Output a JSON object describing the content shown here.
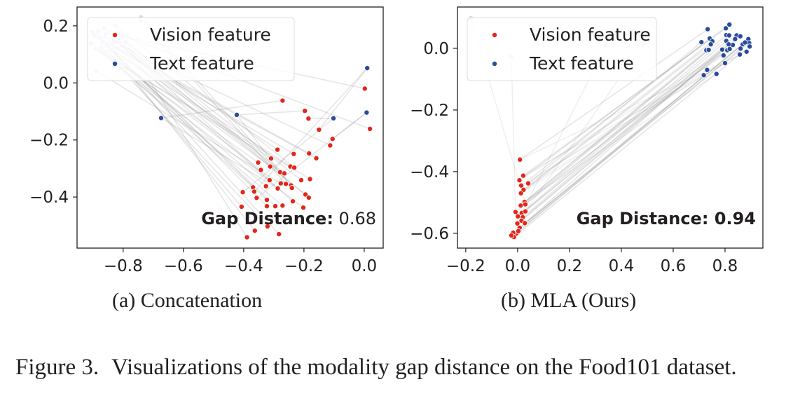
{
  "chart_data": [
    {
      "type": "scatter",
      "subcaption": "(a) Concatenation",
      "xlim": [
        -0.953,
        0.063
      ],
      "ylim": [
        -0.579,
        0.266
      ],
      "xticks": [
        -0.8,
        -0.6,
        -0.4,
        -0.2,
        0.0
      ],
      "xtick_labels": [
        "−0.8",
        "−0.6",
        "−0.4",
        "−0.2",
        "0.0"
      ],
      "yticks": [
        0.2,
        0.0,
        -0.2,
        -0.4
      ],
      "ytick_labels": [
        "0.2",
        "0.0",
        "−0.2",
        "−0.4"
      ],
      "grid": false,
      "legend": "top-left",
      "annotation": {
        "label": "Gap Distance:",
        "value": "0.68",
        "value_bold": false
      },
      "series": [
        {
          "name": "Vision feature",
          "color": "#e3261b",
          "points": [
            [
              -0.271,
              -0.062
            ],
            [
              -0.197,
              -0.098
            ],
            [
              -0.185,
              -0.125
            ],
            [
              -0.15,
              -0.164
            ],
            [
              -0.105,
              -0.196
            ],
            [
              -0.113,
              -0.219
            ],
            [
              0.002,
              -0.02
            ],
            [
              0.019,
              -0.161
            ],
            [
              -0.288,
              -0.234
            ],
            [
              -0.234,
              -0.249
            ],
            [
              -0.183,
              -0.247
            ],
            [
              -0.159,
              -0.264
            ],
            [
              -0.352,
              -0.279
            ],
            [
              -0.309,
              -0.265
            ],
            [
              -0.343,
              -0.305
            ],
            [
              -0.312,
              -0.293
            ],
            [
              -0.245,
              -0.293
            ],
            [
              -0.232,
              -0.297
            ],
            [
              -0.279,
              -0.313
            ],
            [
              -0.265,
              -0.317
            ],
            [
              -0.314,
              -0.341
            ],
            [
              -0.209,
              -0.341
            ],
            [
              -0.18,
              -0.337
            ],
            [
              -0.369,
              -0.366
            ],
            [
              -0.326,
              -0.362
            ],
            [
              -0.277,
              -0.352
            ],
            [
              -0.26,
              -0.354
            ],
            [
              -0.243,
              -0.359
            ],
            [
              -0.287,
              -0.37
            ],
            [
              -0.24,
              -0.368
            ],
            [
              -0.403,
              -0.383
            ],
            [
              -0.365,
              -0.381
            ],
            [
              -0.357,
              -0.403
            ],
            [
              -0.323,
              -0.41
            ],
            [
              -0.237,
              -0.415
            ],
            [
              -0.195,
              -0.391
            ],
            [
              -0.184,
              -0.402
            ],
            [
              -0.407,
              -0.434
            ],
            [
              -0.323,
              -0.432
            ],
            [
              -0.295,
              -0.432
            ],
            [
              -0.271,
              -0.43
            ],
            [
              -0.202,
              -0.437
            ],
            [
              -0.321,
              -0.503
            ],
            [
              -0.363,
              -0.518
            ],
            [
              -0.283,
              -0.53
            ],
            [
              -0.389,
              -0.541
            ]
          ]
        },
        {
          "name": "Text feature",
          "color": "#2a4b9b",
          "faded_color": "#d8d8ee",
          "points": [
            [
              -0.674,
              -0.123
            ],
            [
              -0.423,
              -0.112
            ],
            [
              -0.102,
              -0.124
            ],
            [
              0.01,
              0.052
            ],
            [
              0.008,
              -0.104
            ],
            [
              -0.902,
              0.179
            ],
            [
              -0.884,
              0.182
            ],
            [
              -0.864,
              0.191
            ],
            [
              -0.857,
              0.17
            ],
            [
              -0.894,
              0.166
            ],
            [
              -0.878,
              0.158
            ],
            [
              -0.868,
              0.145
            ],
            [
              -0.906,
              0.139
            ],
            [
              -0.891,
              0.119
            ],
            [
              -0.874,
              0.124
            ],
            [
              -0.853,
              0.132
            ],
            [
              -0.839,
              0.116
            ],
            [
              -0.825,
              0.201
            ],
            [
              -0.812,
              0.166
            ],
            [
              -0.83,
              0.149
            ],
            [
              -0.814,
              0.141
            ],
            [
              -0.792,
              0.143
            ],
            [
              -0.847,
              0.089
            ],
            [
              -0.818,
              0.063
            ],
            [
              -0.803,
              0.067
            ],
            [
              -0.889,
              0.041
            ],
            [
              -0.742,
              0.219
            ],
            [
              -0.741,
              0.23
            ]
          ],
          "faded_from_index": 5
        }
      ]
    },
    {
      "type": "scatter",
      "subcaption": "(b) MLA (Ours)",
      "xlim": [
        -0.232,
        0.946
      ],
      "ylim": [
        -0.648,
        0.134
      ],
      "xticks": [
        -0.2,
        0.0,
        0.2,
        0.4,
        0.6,
        0.8
      ],
      "xtick_labels": [
        "−0.2",
        "0.0",
        "0.2",
        "0.4",
        "0.6",
        "0.8"
      ],
      "yticks": [
        0.0,
        -0.2,
        -0.4,
        -0.6
      ],
      "ytick_labels": [
        "0.0",
        "−0.2",
        "−0.4",
        "−0.6"
      ],
      "grid": false,
      "legend": "top-left",
      "annotation": {
        "label": "Gap Distance:",
        "value": "0.94",
        "value_bold": true
      },
      "series": [
        {
          "name": "Vision feature",
          "color": "#e3261b",
          "points": [
            [
              0.009,
              -0.361
            ],
            [
              0.022,
              -0.413
            ],
            [
              0.007,
              -0.428
            ],
            [
              0.041,
              -0.438
            ],
            [
              0.014,
              -0.445
            ],
            [
              0.023,
              -0.459
            ],
            [
              0.013,
              -0.47
            ],
            [
              0.027,
              -0.498
            ],
            [
              0.012,
              -0.51
            ],
            [
              0.03,
              -0.506
            ],
            [
              -0.008,
              -0.531
            ],
            [
              0.016,
              -0.534
            ],
            [
              0.03,
              -0.529
            ],
            [
              0.001,
              -0.545
            ],
            [
              0.02,
              -0.548
            ],
            [
              0.015,
              -0.559
            ],
            [
              -0.001,
              -0.568
            ],
            [
              0.028,
              -0.567
            ],
            [
              0.008,
              -0.582
            ],
            [
              -0.005,
              -0.601
            ],
            [
              -0.017,
              -0.598
            ],
            [
              -0.014,
              -0.612
            ],
            [
              -0.024,
              -0.607
            ],
            [
              0.003,
              -0.593
            ]
          ]
        },
        {
          "name": "Text feature",
          "color": "#2a4b9b",
          "faded_color": "#d8d8ee",
          "points": [
            [
              0.733,
              0.062
            ],
            [
              0.803,
              0.065
            ],
            [
              0.817,
              0.077
            ],
            [
              0.709,
              0.02
            ],
            [
              0.741,
              0.032
            ],
            [
              0.751,
              0.023
            ],
            [
              0.745,
              0.013
            ],
            [
              0.728,
              -0.006
            ],
            [
              0.737,
              -0.005
            ],
            [
              0.789,
              -0.004
            ],
            [
              0.805,
              0.043
            ],
            [
              0.816,
              0.042
            ],
            [
              0.805,
              0.024
            ],
            [
              0.83,
              0.011
            ],
            [
              0.845,
              0.042
            ],
            [
              0.859,
              0.039
            ],
            [
              0.839,
              0.03
            ],
            [
              0.814,
              0.013
            ],
            [
              0.868,
              0.013
            ],
            [
              0.89,
              0.03
            ],
            [
              0.893,
              0.017
            ],
            [
              0.895,
              0.006
            ],
            [
              0.877,
              0.019
            ],
            [
              0.86,
              -0.001
            ],
            [
              0.883,
              -0.011
            ],
            [
              0.857,
              -0.02
            ],
            [
              0.809,
              -0.006
            ],
            [
              0.794,
              -0.023
            ],
            [
              0.8,
              -0.048
            ],
            [
              0.731,
              -0.07
            ],
            [
              0.718,
              -0.087
            ],
            [
              0.767,
              -0.083
            ],
            [
              0.818,
              -0.002
            ],
            [
              -0.18,
              0.098
            ],
            [
              -0.024,
              -0.027
            ],
            [
              0.342,
              0.011
            ],
            [
              0.486,
              0.014
            ]
          ],
          "faded_from_index": 33
        }
      ]
    }
  ],
  "figure_caption": {
    "label": "Figure 3.",
    "text": "Visualizations of the modality gap distance on the Food101 dataset."
  }
}
